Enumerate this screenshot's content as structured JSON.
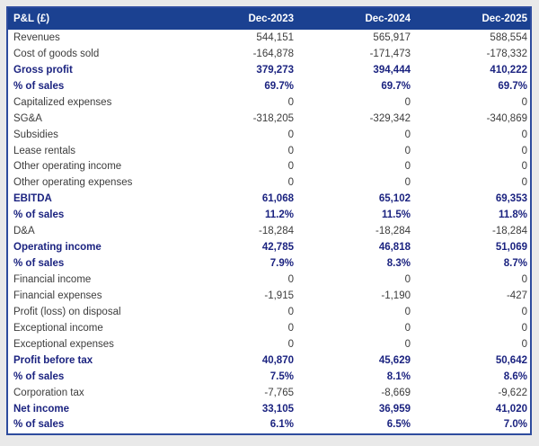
{
  "colors": {
    "page_bg": "#E9E9E9",
    "header_bg": "#1B4191",
    "header_text": "#FFFFFF",
    "border": "#2E4C9E",
    "bold_text": "#1B2380",
    "normal_text": "#3C3C3C",
    "table_bg": "#FFFFFF"
  },
  "chart_data": {
    "type": "table",
    "title": "P&L (£)",
    "columns": [
      "Dec-2023",
      "Dec-2024",
      "Dec-2025"
    ],
    "rows": [
      {
        "label": "Revenues",
        "values": [
          "544,151",
          "565,917",
          "588,554"
        ],
        "bold": false
      },
      {
        "label": "Cost of goods sold",
        "values": [
          "-164,878",
          "-171,473",
          "-178,332"
        ],
        "bold": false
      },
      {
        "label": "Gross profit",
        "values": [
          "379,273",
          "394,444",
          "410,222"
        ],
        "bold": true
      },
      {
        "label": "% of sales",
        "values": [
          "69.7%",
          "69.7%",
          "69.7%"
        ],
        "bold": true
      },
      {
        "label": "Capitalized expenses",
        "values": [
          "0",
          "0",
          "0"
        ],
        "bold": false
      },
      {
        "label": "SG&A",
        "values": [
          "-318,205",
          "-329,342",
          "-340,869"
        ],
        "bold": false
      },
      {
        "label": "Subsidies",
        "values": [
          "0",
          "0",
          "0"
        ],
        "bold": false
      },
      {
        "label": "Lease rentals",
        "values": [
          "0",
          "0",
          "0"
        ],
        "bold": false
      },
      {
        "label": "Other operating income",
        "values": [
          "0",
          "0",
          "0"
        ],
        "bold": false
      },
      {
        "label": "Other operating expenses",
        "values": [
          "0",
          "0",
          "0"
        ],
        "bold": false
      },
      {
        "label": "EBITDA",
        "values": [
          "61,068",
          "65,102",
          "69,353"
        ],
        "bold": true
      },
      {
        "label": "% of sales",
        "values": [
          "11.2%",
          "11.5%",
          "11.8%"
        ],
        "bold": true
      },
      {
        "label": "D&A",
        "values": [
          "-18,284",
          "-18,284",
          "-18,284"
        ],
        "bold": false
      },
      {
        "label": "Operating income",
        "values": [
          "42,785",
          "46,818",
          "51,069"
        ],
        "bold": true
      },
      {
        "label": "% of sales",
        "values": [
          "7.9%",
          "8.3%",
          "8.7%"
        ],
        "bold": true
      },
      {
        "label": "Financial income",
        "values": [
          "0",
          "0",
          "0"
        ],
        "bold": false
      },
      {
        "label": "Financial expenses",
        "values": [
          "-1,915",
          "-1,190",
          "-427"
        ],
        "bold": false
      },
      {
        "label": "Profit (loss) on disposal",
        "values": [
          "0",
          "0",
          "0"
        ],
        "bold": false
      },
      {
        "label": "Exceptional income",
        "values": [
          "0",
          "0",
          "0"
        ],
        "bold": false
      },
      {
        "label": "Exceptional expenses",
        "values": [
          "0",
          "0",
          "0"
        ],
        "bold": false
      },
      {
        "label": "Profit before tax",
        "values": [
          "40,870",
          "45,629",
          "50,642"
        ],
        "bold": true
      },
      {
        "label": "% of sales",
        "values": [
          "7.5%",
          "8.1%",
          "8.6%"
        ],
        "bold": true
      },
      {
        "label": "Corporation tax",
        "values": [
          "-7,765",
          "-8,669",
          "-9,622"
        ],
        "bold": false
      },
      {
        "label": "Net income",
        "values": [
          "33,105",
          "36,959",
          "41,020"
        ],
        "bold": true
      },
      {
        "label": "% of sales",
        "values": [
          "6.1%",
          "6.5%",
          "7.0%"
        ],
        "bold": true
      }
    ]
  }
}
